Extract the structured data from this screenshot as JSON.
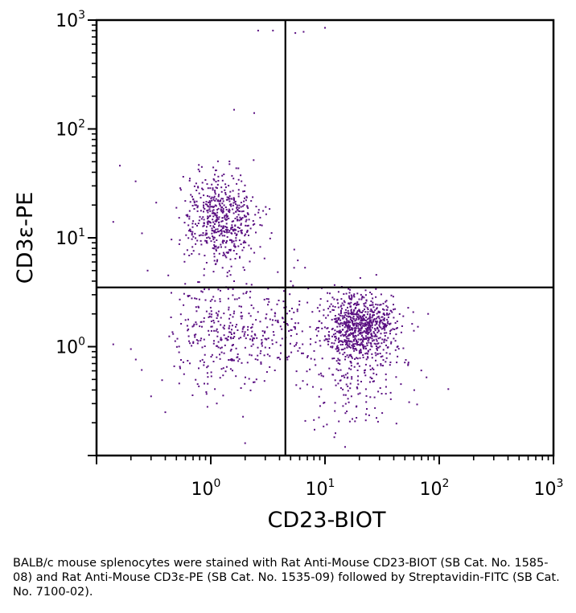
{
  "chart_data": {
    "type": "scatter",
    "title": "",
    "xlabel": "CD23-BIOT",
    "ylabel": "CD3ε-PE",
    "x_scale": "log",
    "y_scale": "log",
    "xlim": [
      0.1,
      1000
    ],
    "ylim": [
      0.1,
      1000
    ],
    "x_ticks": [
      {
        "base": "10",
        "exp": "0",
        "value": 1
      },
      {
        "base": "10",
        "exp": "1",
        "value": 10
      },
      {
        "base": "10",
        "exp": "2",
        "value": 100
      },
      {
        "base": "10",
        "exp": "3",
        "value": 1000
      }
    ],
    "y_ticks": [
      {
        "base": "10",
        "exp": "0",
        "value": 1
      },
      {
        "base": "10",
        "exp": "1",
        "value": 10
      },
      {
        "base": "10",
        "exp": "2",
        "value": 100
      },
      {
        "base": "10",
        "exp": "3",
        "value": 1000
      }
    ],
    "quadrant_gates": {
      "x": 4.5,
      "y": 3.5
    },
    "grid": false,
    "point_color": "#5a0f82",
    "clusters": [
      {
        "center": [
          1.2,
          15
        ],
        "spread_log10": [
          0.16,
          0.21
        ],
        "count": 560
      },
      {
        "center": [
          20,
          1.55
        ],
        "spread_log10": [
          0.16,
          0.15
        ],
        "count": 760
      },
      {
        "center": [
          1.3,
          1.3
        ],
        "spread_log10": [
          0.26,
          0.24
        ],
        "count": 340
      },
      {
        "center": [
          20,
          0.55
        ],
        "spread_log10": [
          0.22,
          0.22
        ],
        "count": 200
      },
      {
        "center": [
          4.5,
          1.5
        ],
        "spread_log10": [
          0.18,
          0.25
        ],
        "count": 90
      }
    ],
    "outliers": [
      [
        2.6,
        800
      ],
      [
        3.5,
        800
      ],
      [
        6.5,
        780
      ],
      [
        5.5,
        760
      ],
      [
        10,
        850
      ],
      [
        1.6,
        150
      ],
      [
        2.4,
        140
      ],
      [
        0.16,
        46
      ],
      [
        0.14,
        14
      ],
      [
        0.22,
        33
      ],
      [
        0.25,
        11
      ],
      [
        0.28,
        5
      ],
      [
        0.14,
        1.05
      ],
      [
        0.2,
        0.95
      ],
      [
        0.3,
        0.35
      ],
      [
        60,
        1.4
      ],
      [
        80,
        2.0
      ],
      [
        0.4,
        0.25
      ],
      [
        2.0,
        0.13
      ],
      [
        15,
        0.12
      ]
    ]
  },
  "caption": "BALB/c mouse splenocytes were stained with Rat Anti-Mouse CD23-BIOT (SB Cat. No. 1585-08) and Rat Anti-Mouse CD3ε-PE (SB Cat. No. 1535-09) followed by Streptavidin-FITC (SB Cat. No. 7100-02)."
}
